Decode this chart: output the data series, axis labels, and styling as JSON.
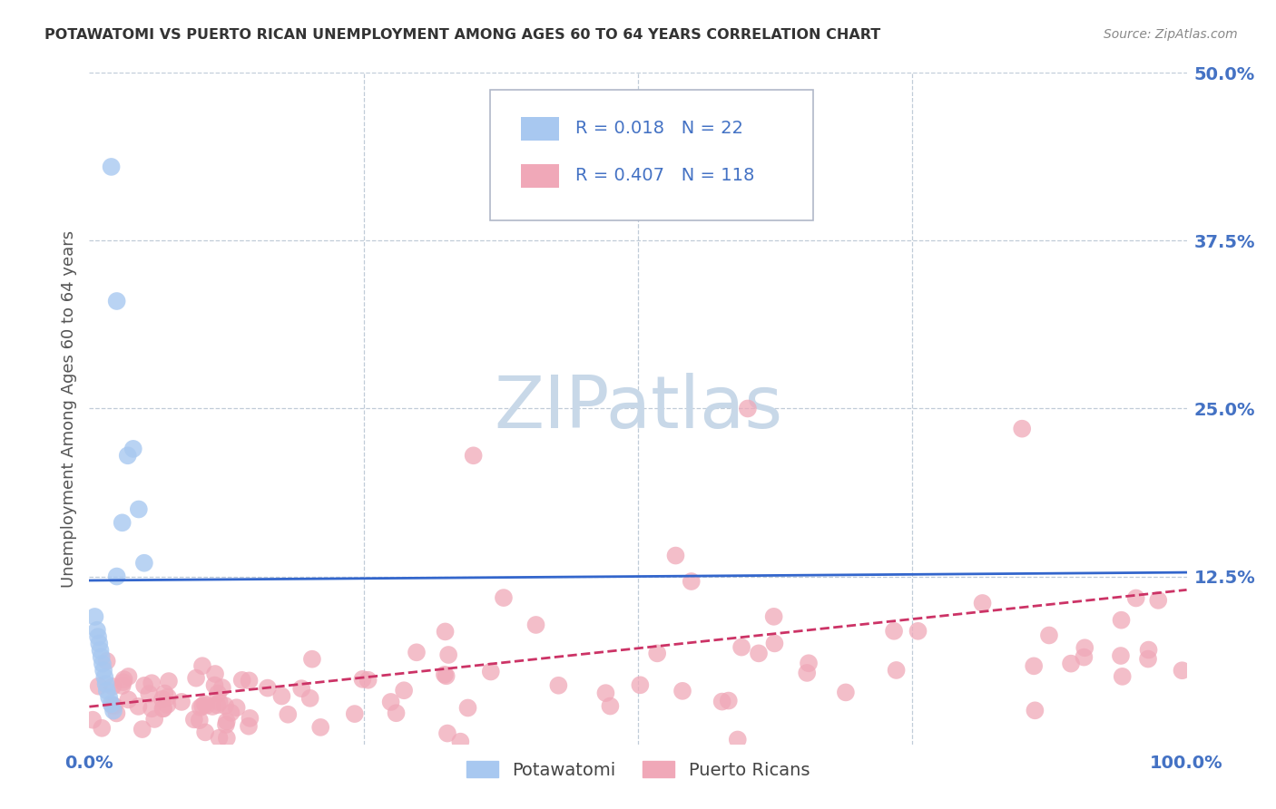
{
  "title": "POTAWATOMI VS PUERTO RICAN UNEMPLOYMENT AMONG AGES 60 TO 64 YEARS CORRELATION CHART",
  "source": "Source: ZipAtlas.com",
  "ylabel": "Unemployment Among Ages 60 to 64 years",
  "right_ytick_labels": [
    "50.0%",
    "37.5%",
    "25.0%",
    "12.5%"
  ],
  "right_ytick_values": [
    0.5,
    0.375,
    0.25,
    0.125
  ],
  "xlim": [
    0.0,
    1.0
  ],
  "ylim": [
    0.0,
    0.5
  ],
  "legend_blue_label": "Potawatomi",
  "legend_pink_label": "Puerto Ricans",
  "R_blue": "0.018",
  "N_blue": "22",
  "R_pink": "0.407",
  "N_pink": "118",
  "blue_color": "#a8c8f0",
  "pink_color": "#f0a8b8",
  "trendline_blue_color": "#3366cc",
  "trendline_pink_color": "#cc3366",
  "watermark_color": "#c8d8e8",
  "title_color": "#333333",
  "right_tick_color": "#4472c4",
  "grid_color": "#c0ccd8",
  "blue_trendline_y0": 0.122,
  "blue_trendline_y1": 0.128,
  "pink_trendline_y0": 0.028,
  "pink_trendline_y1": 0.115
}
